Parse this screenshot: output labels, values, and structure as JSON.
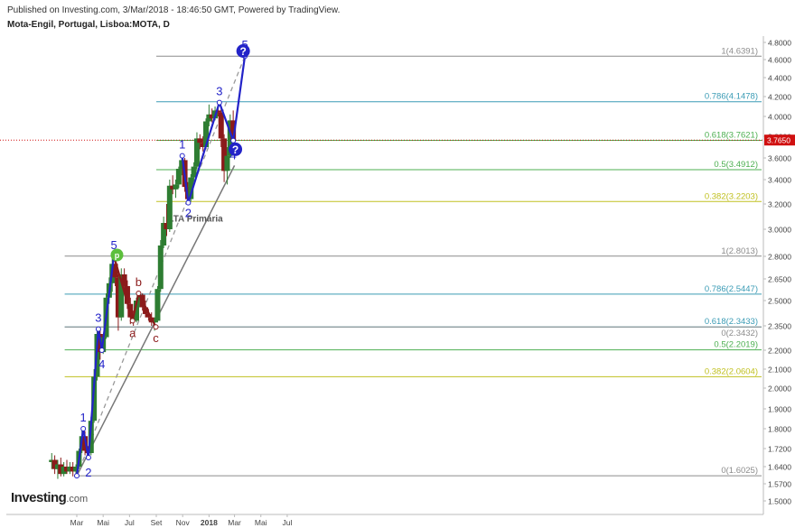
{
  "header": {
    "published": "Published on Investing.com, 3/Mar/2018 - 18:46:50 GMT, Powered by TradingView.",
    "symbol": "Mota-Engil, Portugal, Lisboa:MOTA, D"
  },
  "logo": {
    "text": "Investing",
    "suffix": ".com"
  },
  "colors": {
    "up_candle": "#2e7d32",
    "down_candle": "#8b1a1a",
    "wave_blue": "#2323c8",
    "wave_red": "#8b1a1a",
    "trend_gray": "#777777",
    "price_tag": "#d01010",
    "axis_text": "#444444",
    "fib_gray": "#8c8c8c",
    "fib_teal": "#3a9bb5",
    "fib_green": "#4caf50",
    "fib_yellow": "#c0c020",
    "marker_green": "#5cbf3c"
  },
  "chart_data": {
    "type": "candlestick",
    "y_axis": {
      "ticks": [
        "4.8000",
        "4.6000",
        "4.4000",
        "4.2000",
        "4.0000",
        "3.8000",
        "3.6000",
        "3.4000",
        "3.2000",
        "3.0000",
        "2.8000",
        "2.6500",
        "2.5000",
        "2.3500",
        "2.2000",
        "2.1000",
        "2.0000",
        "1.9000",
        "1.8000",
        "1.7200",
        "1.6400",
        "1.5700",
        "1.5000"
      ]
    },
    "x_axis": {
      "labels": [
        {
          "date": "2017-03-01",
          "label": "Mar"
        },
        {
          "date": "2017-05-01",
          "label": "Mai"
        },
        {
          "date": "2017-07-01",
          "label": "Jul"
        },
        {
          "date": "2017-09-01",
          "label": "Set"
        },
        {
          "date": "2017-11-01",
          "label": "Nov"
        },
        {
          "date": "2018-01-01",
          "label": "2018"
        },
        {
          "date": "2018-03-01",
          "label": "Mar"
        },
        {
          "date": "2018-05-01",
          "label": "Mai"
        },
        {
          "date": "2018-07-01",
          "label": "Jul"
        }
      ]
    },
    "last_price": {
      "value": 3.765,
      "label": "3.7650"
    },
    "fib_levels": [
      {
        "ratio": "1",
        "value": "4.6391",
        "color": "fib_gray",
        "from": "2017-09-01",
        "to": "2018-03-31"
      },
      {
        "ratio": "0.786",
        "value": "4.1478",
        "color": "fib_teal",
        "from": "2017-09-01",
        "to": "2018-03-31"
      },
      {
        "ratio": "0.618",
        "value": "3.7621",
        "color": "fib_green",
        "from": "2017-09-01",
        "to": "2018-03-31"
      },
      {
        "ratio": "0.5",
        "value": "3.4912",
        "color": "fib_green",
        "from": "2017-09-01",
        "to": "2018-03-31"
      },
      {
        "ratio": "0.382",
        "value": "3.2203",
        "color": "fib_yellow",
        "from": "2017-09-01",
        "to": "2018-03-31"
      },
      {
        "ratio": "1",
        "value": "2.8013",
        "color": "fib_gray",
        "from": "2017-02-01",
        "to": "2018-03-31"
      },
      {
        "ratio": "0.786",
        "value": "2.5447",
        "color": "fib_teal",
        "from": "2017-02-01",
        "to": "2018-03-31"
      },
      {
        "ratio": "0.618",
        "value": "2.3433",
        "color": "fib_teal",
        "from": "2017-02-01",
        "to": "2018-03-31"
      },
      {
        "ratio": "0",
        "value": "2.3432",
        "color": "fib_gray",
        "from": "2017-02-01",
        "to": "2018-03-31"
      },
      {
        "ratio": "0.5",
        "value": "2.2019",
        "color": "fib_green",
        "from": "2017-02-01",
        "to": "2018-03-31"
      },
      {
        "ratio": "0.382",
        "value": "2.0604",
        "color": "fib_yellow",
        "from": "2017-02-01",
        "to": "2018-03-31"
      },
      {
        "ratio": "0",
        "value": "1.6025",
        "color": "fib_gray",
        "from": "2017-03-01",
        "to": "2018-03-31"
      }
    ],
    "candles": [
      {
        "date": "2017-01-02",
        "o": 1.66,
        "h": 1.7,
        "l": 1.63,
        "c": 1.67
      },
      {
        "date": "2017-01-09",
        "o": 1.67,
        "h": 1.69,
        "l": 1.61,
        "c": 1.63
      },
      {
        "date": "2017-01-16",
        "o": 1.63,
        "h": 1.67,
        "l": 1.59,
        "c": 1.65
      },
      {
        "date": "2017-01-23",
        "o": 1.65,
        "h": 1.68,
        "l": 1.6,
        "c": 1.61
      },
      {
        "date": "2017-01-30",
        "o": 1.61,
        "h": 1.66,
        "l": 1.6,
        "c": 1.64
      },
      {
        "date": "2017-02-06",
        "o": 1.64,
        "h": 1.67,
        "l": 1.61,
        "c": 1.62
      },
      {
        "date": "2017-02-13",
        "o": 1.62,
        "h": 1.66,
        "l": 1.61,
        "c": 1.64
      },
      {
        "date": "2017-02-20",
        "o": 1.64,
        "h": 1.66,
        "l": 1.6,
        "c": 1.62
      },
      {
        "date": "2017-02-27",
        "o": 1.62,
        "h": 1.65,
        "l": 1.6,
        "c": 1.64
      },
      {
        "date": "2017-03-06",
        "o": 1.64,
        "h": 1.72,
        "l": 1.63,
        "c": 1.71
      },
      {
        "date": "2017-03-13",
        "o": 1.71,
        "h": 1.8,
        "l": 1.7,
        "c": 1.77
      },
      {
        "date": "2017-03-20",
        "o": 1.77,
        "h": 1.79,
        "l": 1.69,
        "c": 1.71
      },
      {
        "date": "2017-03-27",
        "o": 1.71,
        "h": 1.73,
        "l": 1.67,
        "c": 1.7
      },
      {
        "date": "2017-04-03",
        "o": 1.7,
        "h": 1.86,
        "l": 1.69,
        "c": 1.84
      },
      {
        "date": "2017-04-10",
        "o": 1.84,
        "h": 2.1,
        "l": 1.83,
        "c": 2.06
      },
      {
        "date": "2017-04-17",
        "o": 2.06,
        "h": 2.33,
        "l": 2.04,
        "c": 2.3
      },
      {
        "date": "2017-04-24",
        "o": 2.3,
        "h": 2.34,
        "l": 2.15,
        "c": 2.19
      },
      {
        "date": "2017-05-01",
        "o": 2.19,
        "h": 2.3,
        "l": 2.18,
        "c": 2.28
      },
      {
        "date": "2017-05-08",
        "o": 2.28,
        "h": 2.55,
        "l": 2.27,
        "c": 2.52
      },
      {
        "date": "2017-05-15",
        "o": 2.52,
        "h": 2.66,
        "l": 2.48,
        "c": 2.62
      },
      {
        "date": "2017-05-22",
        "o": 2.62,
        "h": 2.8,
        "l": 2.56,
        "c": 2.75
      },
      {
        "date": "2017-05-29",
        "o": 2.75,
        "h": 2.78,
        "l": 2.6,
        "c": 2.66
      },
      {
        "date": "2017-06-05",
        "o": 2.66,
        "h": 2.68,
        "l": 2.32,
        "c": 2.4
      },
      {
        "date": "2017-06-12",
        "o": 2.4,
        "h": 2.72,
        "l": 2.38,
        "c": 2.68
      },
      {
        "date": "2017-06-19",
        "o": 2.68,
        "h": 2.72,
        "l": 2.55,
        "c": 2.6
      },
      {
        "date": "2017-06-26",
        "o": 2.6,
        "h": 2.64,
        "l": 2.45,
        "c": 2.48
      },
      {
        "date": "2017-07-03",
        "o": 2.48,
        "h": 2.52,
        "l": 2.36,
        "c": 2.4
      },
      {
        "date": "2017-07-10",
        "o": 2.4,
        "h": 2.44,
        "l": 2.35,
        "c": 2.38
      },
      {
        "date": "2017-07-17",
        "o": 2.38,
        "h": 2.52,
        "l": 2.37,
        "c": 2.5
      },
      {
        "date": "2017-07-24",
        "o": 2.5,
        "h": 2.56,
        "l": 2.46,
        "c": 2.54
      },
      {
        "date": "2017-07-31",
        "o": 2.54,
        "h": 2.55,
        "l": 2.44,
        "c": 2.46
      },
      {
        "date": "2017-08-07",
        "o": 2.46,
        "h": 2.5,
        "l": 2.4,
        "c": 2.42
      },
      {
        "date": "2017-08-14",
        "o": 2.42,
        "h": 2.45,
        "l": 2.38,
        "c": 2.4
      },
      {
        "date": "2017-08-21",
        "o": 2.4,
        "h": 2.43,
        "l": 2.35,
        "c": 2.37
      },
      {
        "date": "2017-08-28",
        "o": 2.37,
        "h": 2.4,
        "l": 2.32,
        "c": 2.38
      },
      {
        "date": "2017-09-04",
        "o": 2.38,
        "h": 2.6,
        "l": 2.37,
        "c": 2.58
      },
      {
        "date": "2017-09-11",
        "o": 2.58,
        "h": 2.92,
        "l": 2.56,
        "c": 2.88
      },
      {
        "date": "2017-09-18",
        "o": 2.88,
        "h": 3.1,
        "l": 2.86,
        "c": 3.05
      },
      {
        "date": "2017-09-25",
        "o": 3.05,
        "h": 3.2,
        "l": 2.95,
        "c": 3.0
      },
      {
        "date": "2017-10-02",
        "o": 3.0,
        "h": 3.4,
        "l": 2.98,
        "c": 3.35
      },
      {
        "date": "2017-10-09",
        "o": 3.35,
        "h": 3.44,
        "l": 3.28,
        "c": 3.32
      },
      {
        "date": "2017-10-16",
        "o": 3.32,
        "h": 3.4,
        "l": 3.25,
        "c": 3.36
      },
      {
        "date": "2017-10-23",
        "o": 3.36,
        "h": 3.52,
        "l": 3.33,
        "c": 3.5
      },
      {
        "date": "2017-10-30",
        "o": 3.5,
        "h": 3.64,
        "l": 3.44,
        "c": 3.58
      },
      {
        "date": "2017-11-06",
        "o": 3.58,
        "h": 3.6,
        "l": 3.3,
        "c": 3.34
      },
      {
        "date": "2017-11-13",
        "o": 3.34,
        "h": 3.38,
        "l": 3.2,
        "c": 3.24
      },
      {
        "date": "2017-11-20",
        "o": 3.24,
        "h": 3.45,
        "l": 3.22,
        "c": 3.42
      },
      {
        "date": "2017-11-27",
        "o": 3.42,
        "h": 3.56,
        "l": 3.38,
        "c": 3.52
      },
      {
        "date": "2017-12-04",
        "o": 3.52,
        "h": 3.84,
        "l": 3.5,
        "c": 3.78
      },
      {
        "date": "2017-12-11",
        "o": 3.78,
        "h": 3.82,
        "l": 3.68,
        "c": 3.74
      },
      {
        "date": "2017-12-18",
        "o": 3.74,
        "h": 3.8,
        "l": 3.66,
        "c": 3.7
      },
      {
        "date": "2017-12-25",
        "o": 3.7,
        "h": 3.98,
        "l": 3.68,
        "c": 3.95
      },
      {
        "date": "2018-01-01",
        "o": 3.95,
        "h": 4.12,
        "l": 3.9,
        "c": 4.02
      },
      {
        "date": "2018-01-08",
        "o": 4.02,
        "h": 4.08,
        "l": 3.94,
        "c": 3.98
      },
      {
        "date": "2018-01-15",
        "o": 3.98,
        "h": 4.1,
        "l": 3.96,
        "c": 4.06
      },
      {
        "date": "2018-01-22",
        "o": 4.06,
        "h": 4.14,
        "l": 4.0,
        "c": 4.04
      },
      {
        "date": "2018-01-29",
        "o": 4.04,
        "h": 4.08,
        "l": 3.7,
        "c": 3.78
      },
      {
        "date": "2018-02-05",
        "o": 3.78,
        "h": 3.82,
        "l": 3.38,
        "c": 3.48
      },
      {
        "date": "2018-02-12",
        "o": 3.48,
        "h": 3.7,
        "l": 3.36,
        "c": 3.62
      },
      {
        "date": "2018-02-19",
        "o": 3.62,
        "h": 4.02,
        "l": 3.6,
        "c": 3.96
      },
      {
        "date": "2018-02-26",
        "o": 3.96,
        "h": 4.06,
        "l": 3.74,
        "c": 3.77
      }
    ],
    "wave_lines": [
      {
        "color": "wave_blue",
        "points": [
          [
            "2017-03-01",
            1.6025
          ],
          [
            "2017-03-16",
            1.8
          ],
          [
            "2017-03-28",
            1.68
          ],
          [
            "2017-04-20",
            2.33
          ],
          [
            "2017-04-28",
            2.2
          ],
          [
            "2017-05-26",
            2.8013
          ]
        ]
      },
      {
        "color": "wave_red",
        "points": [
          [
            "2017-05-26",
            2.8013
          ],
          [
            "2017-07-08",
            2.38
          ],
          [
            "2017-07-22",
            2.55
          ],
          [
            "2017-08-31",
            2.3432
          ]
        ]
      },
      {
        "color": "wave_blue",
        "points": [
          [
            "2017-10-31",
            3.62
          ],
          [
            "2017-11-14",
            3.21
          ],
          [
            "2018-01-25",
            4.14
          ],
          [
            "2018-02-26",
            3.76
          ],
          [
            "2018-03-25",
            4.6391
          ]
        ]
      }
    ],
    "dashed_lines": [
      {
        "points": [
          [
            "2017-03-01",
            1.6025
          ],
          [
            "2018-03-25",
            4.6391
          ]
        ]
      }
    ],
    "trendline": {
      "points": [
        [
          "2017-03-01",
          1.6025
        ],
        [
          "2018-03-01",
          3.53
        ]
      ],
      "label": "LTA Primária",
      "label_at": [
        "2017-12-01",
        3.06
      ]
    },
    "wave_labels": [
      {
        "text": "1",
        "at": [
          "2017-03-16",
          1.8
        ],
        "pos": "above",
        "color": "wave_blue"
      },
      {
        "text": "2",
        "at": [
          "2017-03-28",
          1.66
        ],
        "pos": "below",
        "color": "wave_blue"
      },
      {
        "text": "3",
        "at": [
          "2017-04-20",
          2.33
        ],
        "pos": "above",
        "color": "wave_blue"
      },
      {
        "text": "4",
        "at": [
          "2017-04-28",
          2.18
        ],
        "pos": "below",
        "color": "wave_blue"
      },
      {
        "text": "5",
        "at": [
          "2017-05-26",
          2.8
        ],
        "pos": "above",
        "color": "wave_blue"
      },
      {
        "text": "a",
        "at": [
          "2017-07-08",
          2.37
        ],
        "pos": "below",
        "color": "wave_red"
      },
      {
        "text": "b",
        "at": [
          "2017-07-22",
          2.55
        ],
        "pos": "above",
        "color": "wave_red"
      },
      {
        "text": "c",
        "at": [
          "2017-08-31",
          2.34
        ],
        "pos": "below",
        "color": "wave_red"
      },
      {
        "text": "1",
        "at": [
          "2017-10-31",
          3.62
        ],
        "pos": "above",
        "color": "wave_blue"
      },
      {
        "text": "2",
        "at": [
          "2017-11-14",
          3.21
        ],
        "pos": "below",
        "color": "wave_blue"
      },
      {
        "text": "3",
        "at": [
          "2018-01-25",
          4.14
        ],
        "pos": "above",
        "color": "wave_blue"
      },
      {
        "text": "4",
        "at": [
          "2018-02-26",
          3.72
        ],
        "pos": "below",
        "color": "wave_blue"
      },
      {
        "text": "5",
        "at": [
          "2018-03-25",
          4.64
        ],
        "pos": "above",
        "color": "wave_blue"
      }
    ],
    "question_marks": [
      {
        "text": "?",
        "at": [
          "2018-03-03",
          3.68
        ]
      },
      {
        "text": "?",
        "at": [
          "2018-03-21",
          4.7
        ]
      }
    ],
    "marker": {
      "text": "p",
      "at": [
        "2017-06-02",
        2.81
      ]
    }
  }
}
